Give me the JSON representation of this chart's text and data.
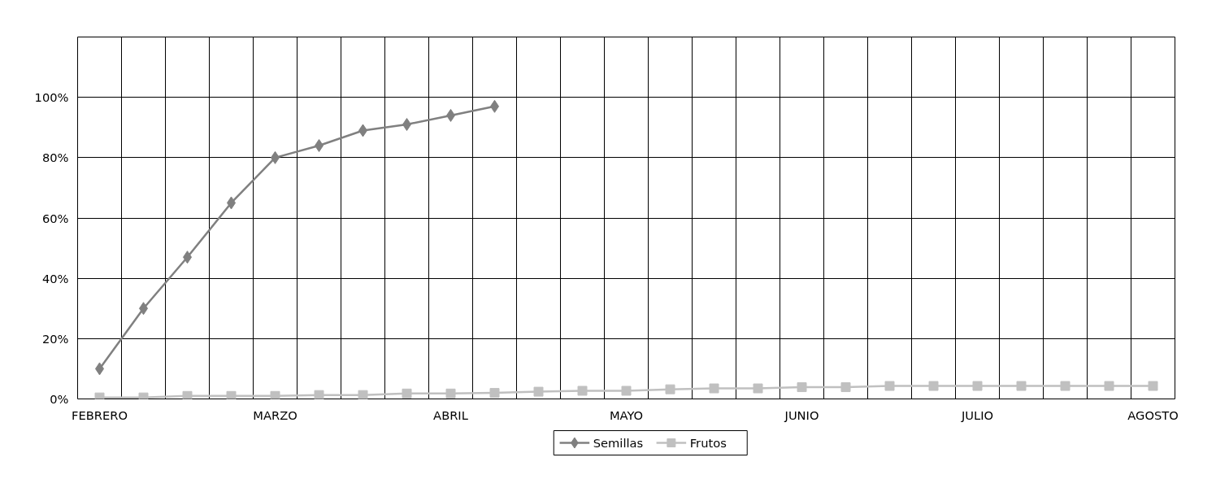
{
  "chart_data": {
    "type": "line",
    "categories": [
      "FEBRERO",
      null,
      null,
      null,
      "MARZO",
      null,
      null,
      null,
      "ABRIL",
      null,
      null,
      null,
      "MAYO",
      null,
      null,
      null,
      "JUNIO",
      null,
      null,
      null,
      "JULIO",
      null,
      null,
      null,
      "AGOSTO"
    ],
    "series": [
      {
        "name": "Semillas",
        "color": "#808080",
        "marker": "diamond",
        "values": [
          10,
          30,
          47,
          65,
          80,
          84,
          89,
          91,
          94,
          97,
          null,
          null,
          null,
          null,
          null,
          null,
          null,
          null,
          null,
          null,
          null,
          null,
          null,
          null,
          null
        ]
      },
      {
        "name": "Frutos",
        "color": "#c0c0c0",
        "marker": "square",
        "values": [
          0.5,
          0.5,
          1,
          1,
          1,
          1.3,
          1.3,
          1.8,
          1.8,
          2,
          2.4,
          2.7,
          2.7,
          3.2,
          3.5,
          3.5,
          3.9,
          3.9,
          4.3,
          4.3,
          4.3,
          4.3,
          4.3,
          4.3,
          4.3
        ]
      }
    ],
    "ylim": [
      0,
      120
    ],
    "yticks": [
      {
        "value": 0,
        "label": "0%"
      },
      {
        "value": 20,
        "label": "20%"
      },
      {
        "value": 40,
        "label": "40%"
      },
      {
        "value": 60,
        "label": "60%"
      },
      {
        "value": 80,
        "label": "80%"
      },
      {
        "value": 100,
        "label": "100%"
      }
    ],
    "grid": true,
    "legend": "bottom",
    "line_style": "solid"
  }
}
